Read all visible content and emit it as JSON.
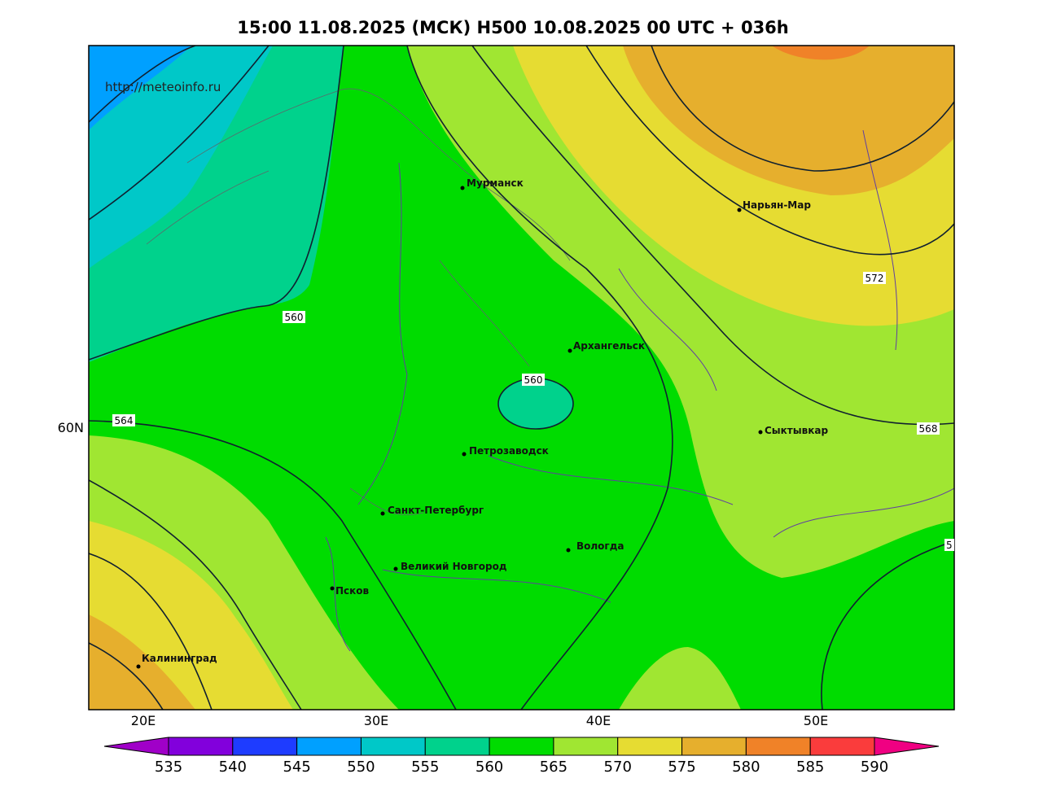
{
  "title": "15:00 11.08.2025 (МСК) H500  10.08.2025 00 UTC + 036h",
  "url": "http://meteoinfo.ru",
  "cities": [
    "Мурманск",
    "Нарьян-Мар",
    "Архангельск",
    "Сыктывкар",
    "Петрозаводск",
    "Санкт-Петербург",
    "Вологда",
    "Великий Новгород",
    "Псков",
    "Калининград"
  ],
  "contour_labels": [
    "560",
    "560",
    "564",
    "572",
    "568",
    "5"
  ],
  "lon_labels": [
    "20E",
    "30E",
    "40E",
    "50E"
  ],
  "lat_labels": [
    "60N"
  ],
  "colorbar": {
    "ticks": [
      535,
      540,
      545,
      550,
      555,
      560,
      565,
      570,
      575,
      580,
      585,
      590
    ],
    "colors": [
      "#a000c8",
      "#8200dc",
      "#1e3cff",
      "#00a0ff",
      "#00c8c8",
      "#00d28c",
      "#00dc00",
      "#a0e632",
      "#e6dc32",
      "#e6af2d",
      "#f08228",
      "#fa3c3c",
      "#f00082"
    ]
  }
}
